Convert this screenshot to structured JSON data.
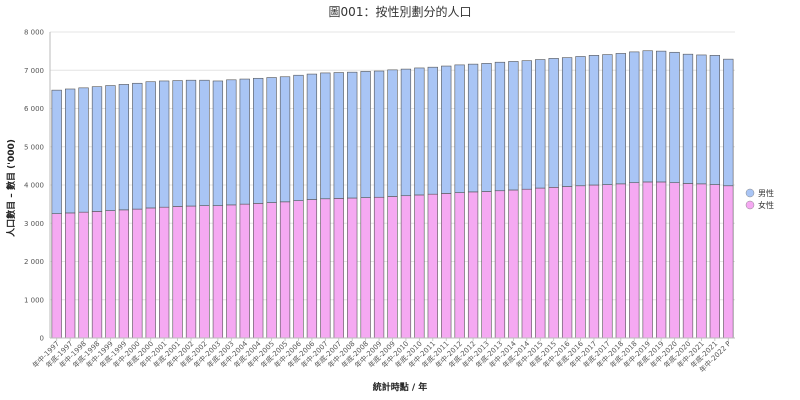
{
  "chart_data": {
    "type": "bar",
    "stacked": true,
    "title": "圖001：按性別劃分的人口",
    "xlabel": "統計時點 / 年",
    "ylabel": "人口數目 – 數目 ('000)",
    "ylim": [
      0,
      8000
    ],
    "yticks": [
      0,
      1000,
      2000,
      3000,
      4000,
      5000,
      6000,
      7000,
      8000
    ],
    "ytick_labels": [
      "0",
      "1 000",
      "2 000",
      "3 000",
      "4 000",
      "5 000",
      "6 000",
      "7 000",
      "8 000"
    ],
    "grid": true,
    "legend_position": "right",
    "categories": [
      "年中-1997",
      "年底-1997",
      "年中-1998",
      "年底-1998",
      "年中-1999",
      "年底-1999",
      "年中-2000",
      "年底-2000",
      "年中-2001",
      "年底-2001",
      "年中-2002",
      "年底-2002",
      "年中-2003",
      "年底-2003",
      "年中-2004",
      "年底-2004",
      "年中-2005",
      "年底-2005",
      "年中-2006",
      "年底-2006",
      "年中-2007",
      "年底-2007",
      "年中-2008",
      "年底-2008",
      "年中-2009",
      "年底-2009",
      "年中-2010",
      "年底-2010",
      "年中-2011",
      "年底-2011",
      "年中-2012",
      "年底-2012",
      "年中-2013",
      "年底-2013",
      "年中-2014",
      "年底-2014",
      "年中-2015",
      "年底-2015",
      "年中-2016",
      "年底-2016",
      "年中-2017",
      "年底-2017",
      "年中-2018",
      "年底-2018",
      "年中-2019",
      "年底-2019",
      "年中-2020",
      "年底-2020",
      "年中-2021",
      "年底-2021",
      "年中-2022 P"
    ],
    "series": [
      {
        "name": "女性",
        "color": "#f5a9f2",
        "values": [
          3250,
          3270,
          3290,
          3310,
          3330,
          3350,
          3370,
          3400,
          3420,
          3440,
          3450,
          3460,
          3460,
          3480,
          3500,
          3520,
          3540,
          3560,
          3590,
          3620,
          3640,
          3650,
          3660,
          3670,
          3680,
          3700,
          3720,
          3740,
          3760,
          3780,
          3800,
          3820,
          3830,
          3850,
          3870,
          3890,
          3920,
          3940,
          3960,
          3980,
          4000,
          4010,
          4030,
          4060,
          4080,
          4080,
          4060,
          4040,
          4030,
          4010,
          3980
        ]
      },
      {
        "name": "男性",
        "color": "#a9c5f5",
        "values": [
          3230,
          3240,
          3250,
          3260,
          3270,
          3280,
          3290,
          3300,
          3300,
          3290,
          3290,
          3280,
          3260,
          3270,
          3270,
          3270,
          3270,
          3270,
          3280,
          3280,
          3290,
          3290,
          3290,
          3300,
          3300,
          3310,
          3310,
          3320,
          3320,
          3330,
          3340,
          3340,
          3350,
          3360,
          3360,
          3360,
          3360,
          3370,
          3370,
          3380,
          3390,
          3400,
          3410,
          3420,
          3430,
          3420,
          3410,
          3380,
          3370,
          3380,
          3310
        ]
      }
    ]
  }
}
